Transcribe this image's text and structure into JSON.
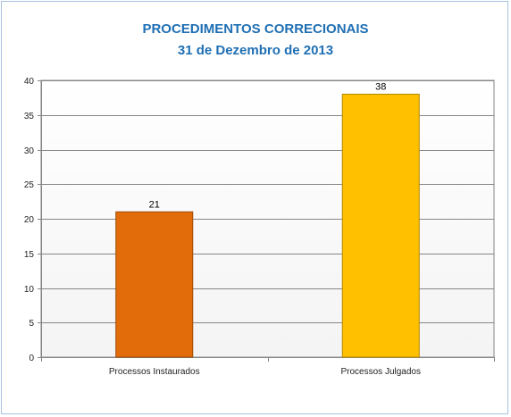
{
  "chart_data": {
    "type": "bar",
    "title": "PROCEDIMENTOS CORRECIONAIS",
    "subtitle": "31 de Dezembro de 2013",
    "categories": [
      "Processos Instaurados",
      "Processos Julgados"
    ],
    "values": [
      21,
      38
    ],
    "data_labels": [
      "21",
      "38"
    ],
    "bar_colors": [
      "#e36c0a",
      "#ffc000"
    ],
    "bar_border_colors": [
      "#9c4a06",
      "#b38600"
    ],
    "xlabel": "",
    "ylabel": "",
    "ylim": [
      0,
      40
    ],
    "yticks": [
      0,
      5,
      10,
      15,
      20,
      25,
      30,
      35,
      40
    ],
    "grid": true,
    "legend": "none"
  }
}
